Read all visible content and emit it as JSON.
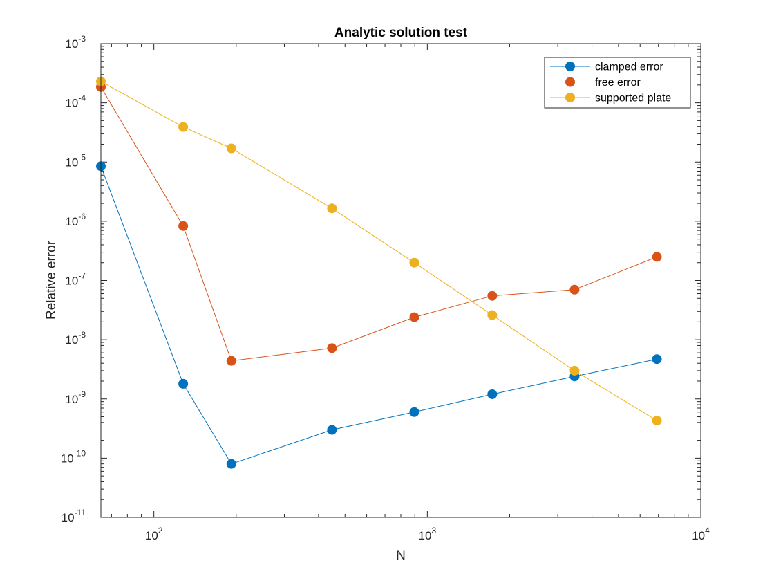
{
  "chart_data": {
    "type": "line",
    "title": "Analytic solution test",
    "xlabel": "N",
    "ylabel": "Relative error",
    "xscale": "log",
    "yscale": "log",
    "xlim": [
      64,
      10000
    ],
    "ylim": [
      1e-11,
      0.001
    ],
    "x_ticks": [
      {
        "value": 100,
        "base": "10",
        "exp": "2"
      },
      {
        "value": 1000,
        "base": "10",
        "exp": "3"
      },
      {
        "value": 10000,
        "base": "10",
        "exp": "4"
      }
    ],
    "y_ticks": [
      {
        "value": 1e-11,
        "base": "10",
        "exp": "-11"
      },
      {
        "value": 1e-10,
        "base": "10",
        "exp": "-10"
      },
      {
        "value": 1e-09,
        "base": "10",
        "exp": "-9"
      },
      {
        "value": 1e-08,
        "base": "10",
        "exp": "-8"
      },
      {
        "value": 1e-07,
        "base": "10",
        "exp": "-7"
      },
      {
        "value": 1e-06,
        "base": "10",
        "exp": "-6"
      },
      {
        "value": 1e-05,
        "base": "10",
        "exp": "-5"
      },
      {
        "value": 0.0001,
        "base": "10",
        "exp": "-4"
      },
      {
        "value": 0.001,
        "base": "10",
        "exp": "-3"
      }
    ],
    "grid": false,
    "box": true,
    "legend_location": "top-right",
    "series": [
      {
        "name": "clamped error",
        "color": "#0072BD",
        "x": [
          64,
          128,
          192,
          448,
          896,
          1728,
          3456,
          6912
        ],
        "y": [
          8.5e-06,
          1.8e-09,
          8e-11,
          3e-10,
          6e-10,
          1.2e-09,
          2.4e-09,
          4.7e-09
        ]
      },
      {
        "name": "free error",
        "color": "#D95319",
        "x": [
          64,
          128,
          192,
          448,
          896,
          1728,
          3456,
          6912
        ],
        "y": [
          0.000185,
          8.3e-07,
          4.4e-09,
          7.2e-09,
          2.4e-08,
          5.5e-08,
          7e-08,
          2.5e-07
        ]
      },
      {
        "name": "supported plate",
        "color": "#EDB120",
        "x": [
          64,
          128,
          192,
          448,
          896,
          1728,
          3456,
          6912
        ],
        "y": [
          0.00023,
          3.9e-05,
          1.7e-05,
          1.65e-06,
          2e-07,
          2.6e-08,
          3e-09,
          4.3e-10
        ]
      }
    ]
  }
}
